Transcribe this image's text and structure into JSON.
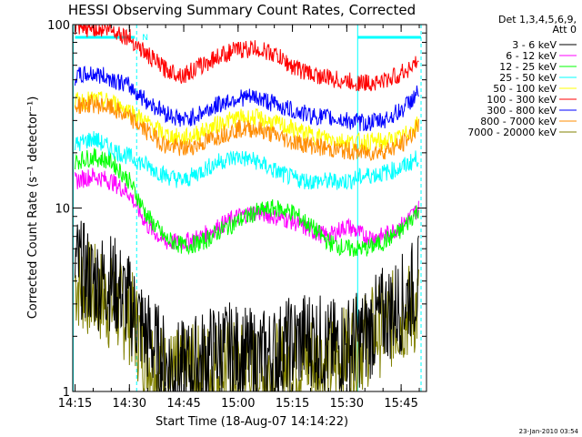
{
  "chart_data": {
    "type": "line",
    "title": "HESSI Observing Summary Count Rates, Corrected",
    "xlabel": "Start Time (18-Aug-07 14:14:22)",
    "ylabel": "Corrected Count Rate (s⁻¹ detector⁻¹)",
    "yscale": "log",
    "ylim": [
      1,
      100
    ],
    "xlim": [
      "14:14:22",
      "15:52:00"
    ],
    "x_ticks": [
      "14:15",
      "14:30",
      "14:45",
      "15:00",
      "15:15",
      "15:30",
      "15:45"
    ],
    "y_ticks": [
      "1",
      "10",
      "100"
    ],
    "x": [
      "14:15",
      "14:20",
      "14:25",
      "14:30",
      "14:35",
      "14:40",
      "14:45",
      "14:50",
      "14:55",
      "15:00",
      "15:05",
      "15:10",
      "15:15",
      "15:20",
      "15:25",
      "15:30",
      "15:35",
      "15:40",
      "15:45",
      "15:50"
    ],
    "legend_header": [
      "Det 1,3,4,5,6,9,",
      "Att 0"
    ],
    "series": [
      {
        "name": "3 - 6 keV",
        "color": "#000000",
        "values": [
          5,
          4,
          4,
          3,
          2,
          1.4,
          1.3,
          1.5,
          1.7,
          1.6,
          1.5,
          1.6,
          1.8,
          2,
          1.7,
          1.8,
          2,
          2.6,
          3,
          4
        ]
      },
      {
        "name": "6 - 12 keV",
        "color": "#ff00ff",
        "values": [
          14,
          15,
          14,
          12,
          8,
          6.5,
          6.5,
          7,
          8,
          9,
          9.5,
          9,
          8.5,
          7.5,
          7,
          8,
          7,
          7,
          8,
          10
        ]
      },
      {
        "name": "12 - 25 keV",
        "color": "#00ff00",
        "values": [
          18,
          19,
          18,
          14,
          9,
          6.8,
          6.2,
          6.5,
          7.5,
          8.5,
          9.5,
          10,
          9.5,
          8,
          6.5,
          6,
          6,
          6.5,
          7.5,
          10
        ]
      },
      {
        "name": "25 - 50 keV",
        "color": "#00ffff",
        "values": [
          22,
          24,
          21,
          19,
          17,
          15,
          14,
          16,
          18,
          19,
          18,
          16,
          14.5,
          14,
          14,
          14,
          15,
          15.5,
          16.5,
          19
        ]
      },
      {
        "name": "50 - 100 keV",
        "color": "#ffff00",
        "values": [
          38,
          39,
          38,
          34,
          29,
          25,
          24,
          26,
          29,
          31,
          31,
          29,
          27,
          25,
          24,
          23,
          23,
          23,
          24,
          29
        ]
      },
      {
        "name": "100 - 300 keV",
        "color": "#ff0000",
        "values": [
          93,
          96,
          94,
          85,
          68,
          57,
          53,
          60,
          68,
          73,
          74,
          69,
          59,
          54,
          51,
          49,
          48,
          49,
          54,
          63
        ]
      },
      {
        "name": "300 - 800 keV",
        "color": "#0000ff",
        "values": [
          52,
          54,
          51,
          46,
          38,
          33,
          30,
          33,
          37,
          40,
          40,
          37,
          34,
          32,
          31,
          30,
          29,
          30,
          34,
          43
        ]
      },
      {
        "name": "800 - 7000 keV",
        "color": "#ff8c00",
        "values": [
          36,
          37,
          35,
          31,
          26,
          22,
          21,
          22.5,
          25,
          27,
          27,
          25,
          23,
          22,
          21,
          20.5,
          20,
          20.5,
          22,
          28
        ]
      },
      {
        "name": "7000 - 20000 keV",
        "color": "#808000",
        "values": [
          4,
          3.5,
          3,
          2.6,
          1.6,
          1.2,
          1.2,
          1.3,
          1.4,
          1.3,
          1.25,
          1.3,
          1.4,
          1.5,
          1.4,
          1.6,
          1.9,
          2.3,
          2.6,
          2.9
        ]
      }
    ],
    "annotations": [
      {
        "text": "N",
        "color": "#00ffff"
      }
    ],
    "timestamp": "23-Jan-2010 03:54"
  }
}
